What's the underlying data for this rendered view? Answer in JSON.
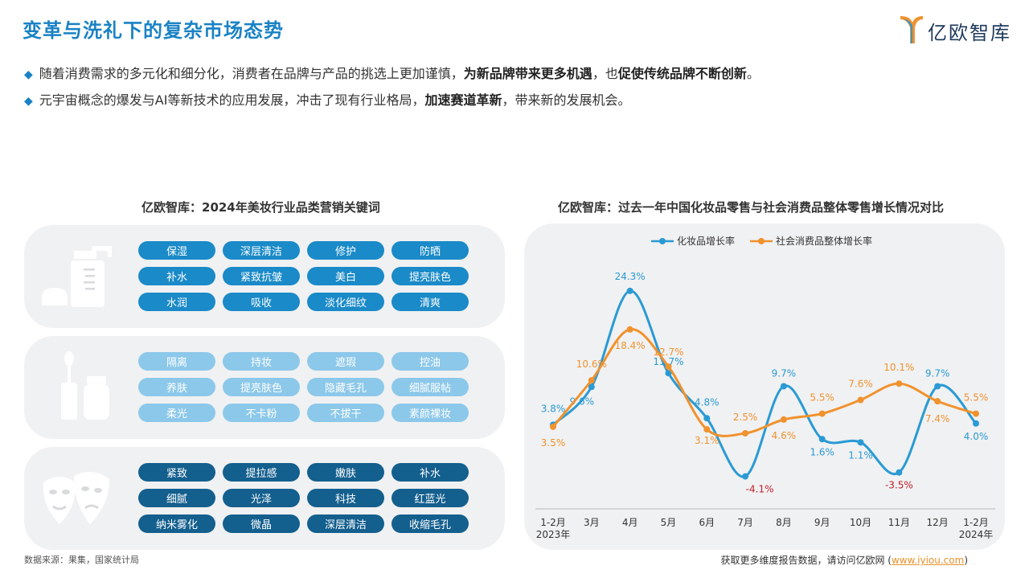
{
  "header": {
    "title": "变革与洗礼下的复杂市场态势",
    "brand": "亿欧智库"
  },
  "bullets": [
    {
      "parts": [
        {
          "t": "随着消费需求的多元化和细分化，消费者在品牌与产品的挑选上更加谨慎，",
          "b": false
        },
        {
          "t": "为新品牌带来更多机遇",
          "b": true
        },
        {
          "t": "，也",
          "b": false
        },
        {
          "t": "促使传统品牌不断创新",
          "b": true
        },
        {
          "t": "。",
          "b": false
        }
      ]
    },
    {
      "parts": [
        {
          "t": "元宇宙概念的爆发与AI等新技术的应用发展，冲击了现有行业格局，",
          "b": false
        },
        {
          "t": "加速赛道革新",
          "b": true
        },
        {
          "t": "，带来新的发展机会。",
          "b": false
        }
      ]
    }
  ],
  "left": {
    "subtitle": "亿欧智库：2024年美妆行业品类营销关键词",
    "panels": [
      {
        "icon": "skincare-bottle-icon",
        "tags": [
          "保湿",
          "深层清洁",
          "修护",
          "防晒",
          "补水",
          "紧致抗皱",
          "美白",
          "提亮肤色",
          "水润",
          "吸收",
          "淡化细纹",
          "清爽"
        ]
      },
      {
        "icon": "makeup-brush-icon",
        "tags": [
          "隔离",
          "持妆",
          "遮瑕",
          "控油",
          "养肤",
          "提亮肤色",
          "隐藏毛孔",
          "细腻服帖",
          "柔光",
          "不卡粉",
          "不拔干",
          "素颜裸妆"
        ]
      },
      {
        "icon": "face-mask-icon",
        "tags": [
          "紧致",
          "提拉感",
          "嫩肤",
          "补水",
          "细腻",
          "光泽",
          "科技",
          "红蓝光",
          "纳米雾化",
          "微晶",
          "深层清洁",
          "收缩毛孔"
        ]
      }
    ]
  },
  "right": {
    "subtitle": "亿欧智库：过去一年中国化妆品零售与社会消费品整体零售增长情况对比"
  },
  "chart_data": {
    "type": "line",
    "categories": [
      "1-2月\n2023年",
      "3月",
      "4月",
      "5月",
      "6月",
      "7月",
      "8月",
      "9月",
      "10月",
      "11月",
      "12月",
      "1-2月\n2024年"
    ],
    "series": [
      {
        "name": "化妆品增长率",
        "color": "#2a9ad4",
        "values": [
          3.8,
          9.6,
          24.3,
          11.7,
          4.8,
          -4.1,
          9.7,
          1.6,
          1.1,
          -3.5,
          9.7,
          4.0
        ],
        "labels": [
          "3.8%",
          "9.6%",
          "24.3%",
          "11.7%",
          "4.8%",
          "-4.1%",
          "9.7%",
          "1.6%",
          "1.1%",
          "-3.5%",
          "9.7%",
          "4.0%"
        ]
      },
      {
        "name": "社会消费品整体增长率",
        "color": "#f0922e",
        "values": [
          3.5,
          10.6,
          18.4,
          12.7,
          3.1,
          2.5,
          4.6,
          5.5,
          7.6,
          10.1,
          7.4,
          5.5
        ],
        "labels": [
          "3.5%",
          "10.6%",
          "18.4%",
          "12.7%",
          "3.1%",
          "2.5%",
          "4.6%",
          "5.5%",
          "7.6%",
          "10.1%",
          "7.4%",
          "5.5%"
        ]
      }
    ],
    "negative_label_color": "#c0202a",
    "ylim": [
      -6,
      26
    ],
    "legend": "top-center",
    "grid": false
  },
  "footer": {
    "source": "数据来源：果集，国家统计局",
    "text": "获取更多维度报告数据，请访问亿欧网 (",
    "link": "www.iyiou.com",
    "end": ")"
  }
}
